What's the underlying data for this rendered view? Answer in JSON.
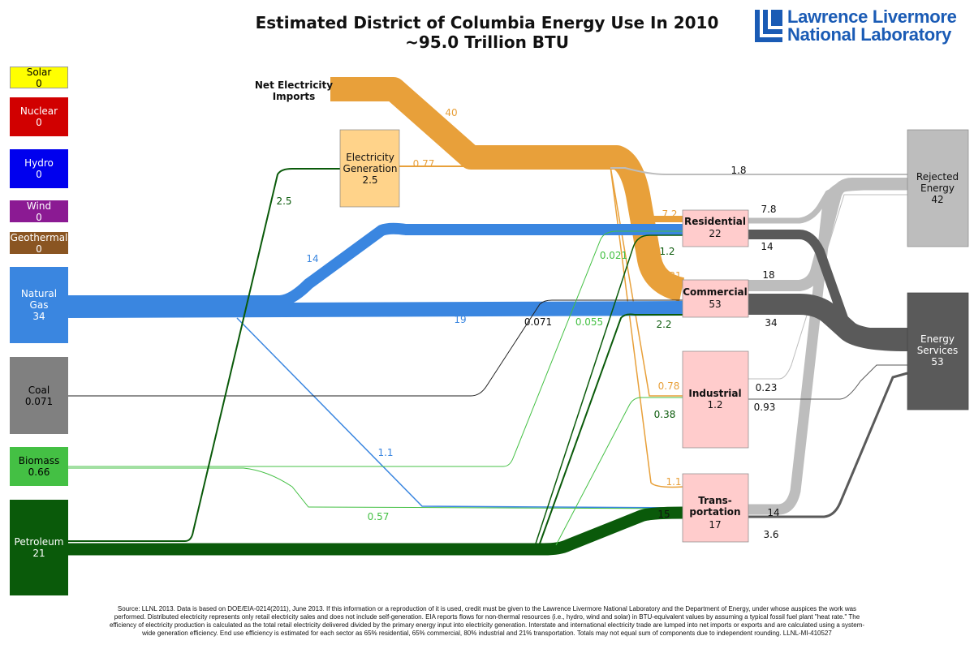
{
  "title": "Estimated District of Columbia Energy Use In 2010",
  "subtitle": "~95.0 Trillion BTU",
  "logo": {
    "line1": "Lawrence Livermore",
    "line2": "National Laboratory"
  },
  "sources": [
    {
      "key": "solar",
      "name": "Solar",
      "value": "0",
      "color": "#ffff00",
      "text_color": "#000000"
    },
    {
      "key": "nuclear",
      "name": "Nuclear",
      "value": "0",
      "color": "#d10000",
      "text_color": "#ffffff"
    },
    {
      "key": "hydro",
      "name": "Hydro",
      "value": "0",
      "color": "#0000ee",
      "text_color": "#ffffff"
    },
    {
      "key": "wind",
      "name": "Wind",
      "value": "0",
      "color": "#8b1a93",
      "text_color": "#ffffff"
    },
    {
      "key": "geothermal",
      "name": "Geothermal",
      "value": "0",
      "color": "#8a5522",
      "text_color": "#ffffff"
    },
    {
      "key": "natural-gas",
      "name": "Natural Gas",
      "value": "34",
      "color": "#3a86e0",
      "text_color": "#ffffff"
    },
    {
      "key": "coal",
      "name": "Coal",
      "value": "0.071",
      "color": "#808080",
      "text_color": "#000000"
    },
    {
      "key": "biomass",
      "name": "Biomass",
      "value": "0.66",
      "color": "#44c044",
      "text_color": "#000000"
    },
    {
      "key": "petroleum",
      "name": "Petroleum",
      "value": "21",
      "color": "#0a5a0a",
      "text_color": "#ffffff"
    }
  ],
  "imports": {
    "name": "Net Electricity Imports",
    "value": "40"
  },
  "electricity_generation": {
    "name": "Electricity Generation",
    "value": "2.5"
  },
  "sectors": [
    {
      "key": "residential",
      "name": "Residential",
      "value": "22"
    },
    {
      "key": "commercial",
      "name": "Commercial",
      "value": "53"
    },
    {
      "key": "industrial",
      "name": "Industrial",
      "value": "1.2"
    },
    {
      "key": "transportation",
      "name": "Trans-portation",
      "value": "17"
    }
  ],
  "outputs": [
    {
      "key": "rejected",
      "name": "Rejected Energy",
      "value": "42"
    },
    {
      "key": "services",
      "name": "Energy Services",
      "value": "53"
    }
  ],
  "flow_labels": {
    "imports": "40",
    "elec_out": "0.77",
    "elec_loss": "1.8",
    "petro_to_elec": "2.5",
    "ng_to_res": "14",
    "ng_to_com": "19",
    "ng_to_trans": "1.1",
    "coal_to_com": "0.071",
    "bio_to_com": "0.055",
    "bio_to_res": "0.021",
    "bio_to_trans": "0.57",
    "elec_to_res": "7.2",
    "elec_to_com": "31",
    "elec_to_ind": "0.78",
    "elec_to_trans": "1.1",
    "petro_to_res": "1.2",
    "petro_to_com": "2.2",
    "petro_to_ind": "0.38",
    "petro_to_trans": "15",
    "res_rejected": "7.8",
    "res_services": "14",
    "com_rejected": "18",
    "com_services": "34",
    "ind_rejected": "0.23",
    "ind_services": "0.93",
    "trans_rejected": "14",
    "trans_services": "3.6"
  },
  "colors": {
    "electricity": "#e8a03a",
    "natural_gas": "#3a86e0",
    "petroleum": "#0a5a0a",
    "biomass": "#44c044",
    "coal": "#222222",
    "rejected": "#bdbdbd",
    "services": "#5a5a5a",
    "sector_box": "#ffcccc",
    "elec_box": "#ffd38a"
  },
  "footer": "Source: LLNL 2013. Data is based on DOE/EIA-0214(2011), June 2013. If this information or a reproduction of it is used, credit must be given to the Lawrence Livermore National Laboratory and the Department of Energy, under whose auspices the work was performed. Distributed electricity represents only retail electricity sales and does not include self-generation. EIA reports flows for non-thermal resources (i.e., hydro, wind and solar) in BTU-equivalent values by assuming a typical fossil fuel plant \"heat rate.\" The efficiency of electricity production is calculated as the total retail electricity delivered divided by the primary energy input into electricity generation. Interstate and international electricity trade are lumped into net imports or exports and are calculated using a system-wide generation efficiency. End use efficiency is estimated for each sector as 65% residential, 65% commercial, 80% industrial and 21% transportation. Totals may not equal sum of components due to independent rounding. LLNL-MI-410527"
}
